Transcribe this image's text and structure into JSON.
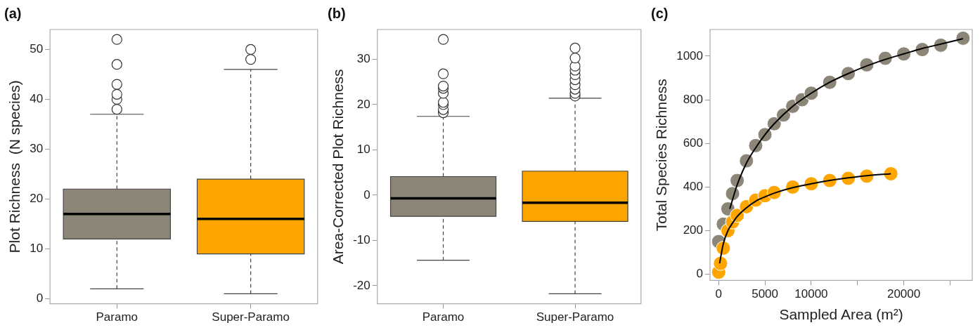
{
  "chart_data": [
    {
      "type": "box",
      "title": "(a)",
      "ylabel": "Plot Richness  (N species)",
      "categories": [
        "Paramo",
        "Super-Paramo"
      ],
      "colors": [
        "#8b8677",
        "#ffa500"
      ],
      "boxes": [
        {
          "low": 2,
          "q1": 12,
          "median": 17,
          "q3": 22,
          "high": 37,
          "outliers": [
            38,
            40,
            41,
            43,
            47,
            52
          ]
        },
        {
          "low": 1,
          "q1": 9,
          "median": 16,
          "q3": 24,
          "high": 46,
          "outliers": [
            48,
            50
          ]
        }
      ],
      "ylim": [
        -1,
        54
      ],
      "yticks": [
        0,
        10,
        20,
        30,
        40,
        50
      ],
      "grid": false,
      "legend": false
    },
    {
      "type": "box",
      "title": "(b)",
      "ylabel": "Area-Corrected Plot Richness",
      "categories": [
        "Paramo",
        "Super-Paramo"
      ],
      "colors": [
        "#8b8677",
        "#ffa500"
      ],
      "boxes": [
        {
          "low": -14.4,
          "q1": -4.7,
          "median": -0.7,
          "q3": 4.1,
          "high": 17.4,
          "outliers": [
            18.2,
            18.9,
            20,
            20.5,
            22.5,
            23.6,
            24.1,
            26.8,
            34.4
          ]
        },
        {
          "low": -21.8,
          "q1": -5.8,
          "median": -1.7,
          "q3": 5.3,
          "high": 21.4,
          "outliers": [
            21.9,
            22.5,
            23.4,
            24.4,
            25.5,
            26.6,
            27.6,
            28.5,
            30.3,
            32.5
          ]
        }
      ],
      "ylim": [
        -24,
        36.6
      ],
      "yticks": [
        -20,
        -10,
        0,
        10,
        20,
        30
      ],
      "grid": false,
      "legend": false
    },
    {
      "type": "scatter",
      "title": "(c)",
      "xlabel": "Sampled Area (m²)",
      "ylabel": "Total Species Richness",
      "marker": "circle",
      "grid": false,
      "legend": false,
      "xlim": [
        -930,
        27400
      ],
      "xticks": [
        0,
        5000,
        10000,
        {
          "value": 15000,
          "label": null
        },
        20000,
        {
          "value": 25000,
          "label": null
        }
      ],
      "ylim": [
        -28,
        1122
      ],
      "yticks": [
        0,
        200,
        400,
        600,
        800,
        1000
      ],
      "series": [
        {
          "type": "scatter",
          "color": "#8b8677",
          "x": [
            0,
            500,
            1000,
            1500,
            2000,
            3000,
            4000,
            5000,
            6000,
            7000,
            8000,
            9000,
            10000,
            12000,
            14000,
            16000,
            18000,
            20000,
            22000,
            24000,
            26400
          ],
          "values": [
            150,
            230,
            300,
            370,
            430,
            520,
            590,
            640,
            690,
            730,
            770,
            800,
            830,
            880,
            920,
            960,
            990,
            1010,
            1030,
            1050,
            1082
          ]
        },
        {
          "type": "scatter",
          "color": "#ffa500",
          "x": [
            0,
            200,
            500,
            1000,
            1500,
            2000,
            3000,
            4000,
            5000,
            6000,
            8000,
            10000,
            12000,
            14000,
            16000,
            18600
          ],
          "values": [
            10,
            50,
            120,
            200,
            240,
            270,
            310,
            340,
            360,
            375,
            400,
            415,
            430,
            440,
            450,
            461
          ]
        },
        {
          "type": "line",
          "marker": "none",
          "color": "#000000",
          "x": [
            1200,
            2000,
            3000,
            4000,
            5000,
            6000,
            8000,
            10000,
            12000,
            14000,
            16000,
            18000,
            20000,
            22000,
            24000,
            26400
          ],
          "values": [
            300,
            410,
            510,
            580,
            640,
            690,
            770,
            830,
            880,
            920,
            955,
            985,
            1010,
            1035,
            1055,
            1080
          ]
        },
        {
          "type": "line",
          "marker": "none",
          "color": "#000000",
          "x": [
            100,
            500,
            1000,
            1500,
            2000,
            3000,
            4000,
            5000,
            6000,
            8000,
            10000,
            12000,
            14000,
            16000,
            18600
          ],
          "values": [
            50,
            140,
            200,
            235,
            265,
            305,
            335,
            355,
            372,
            397,
            415,
            430,
            442,
            452,
            461
          ]
        }
      ]
    }
  ]
}
